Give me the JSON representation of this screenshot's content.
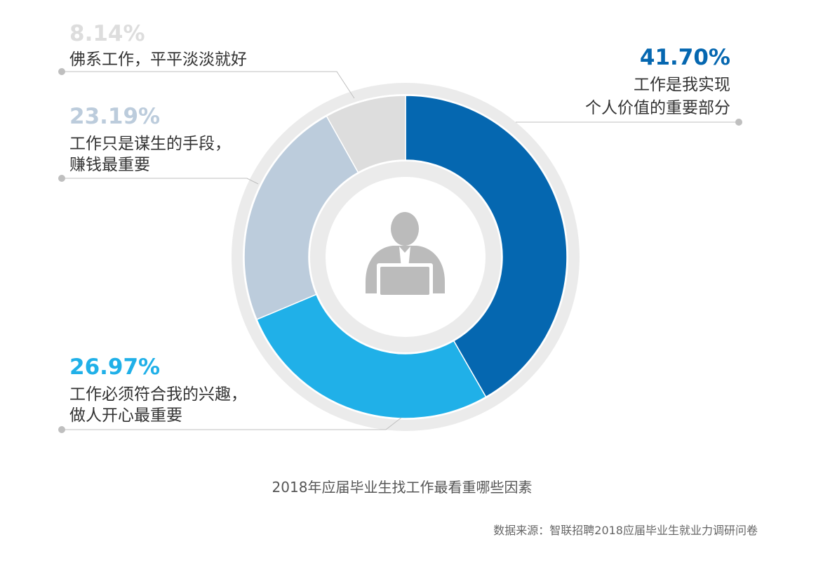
{
  "chart_data": {
    "type": "pie",
    "title": "2018年应届毕业生找工作最看重哪些因素",
    "source": "数据来源：智联招聘2018应届毕业生就业力调研问卷",
    "slices": [
      {
        "value_label": "41.70%",
        "value": 41.7,
        "label_lines": [
          "工作是我实现",
          "个人价值的重要部分"
        ],
        "color": "#0567B0"
      },
      {
        "value_label": "26.97%",
        "value": 26.97,
        "label_lines": [
          "工作必须符合我的兴趣，",
          "做人开心最重要"
        ],
        "color": "#20B0E8"
      },
      {
        "value_label": "23.19%",
        "value": 23.19,
        "label_lines": [
          "工作只是谋生的手段，",
          "赚钱最重要"
        ],
        "color": "#BCCCDC"
      },
      {
        "value_label": "8.14%",
        "value": 8.14,
        "label_lines": [
          "佛系工作，平平淡淡就好"
        ],
        "color": "#DDDDDD"
      }
    ],
    "center_icon": "person-with-laptop-icon",
    "track_color": "#EBEBEB",
    "leader_color": "#BFBFBF"
  }
}
